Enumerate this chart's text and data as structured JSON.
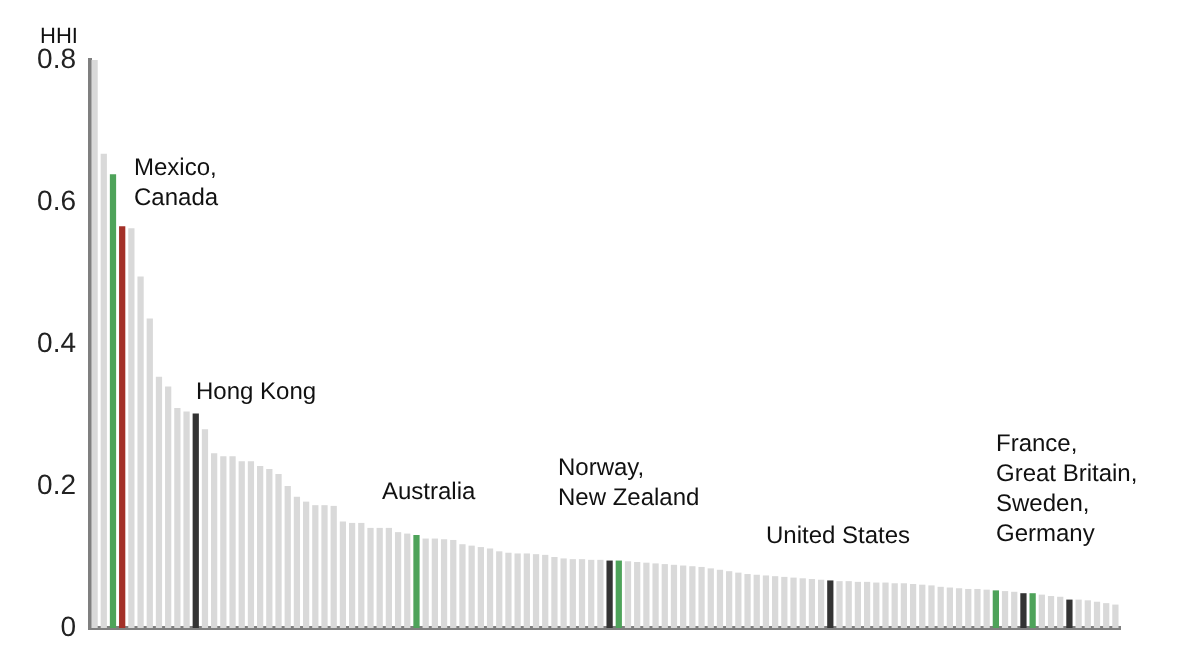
{
  "chart_data": {
    "type": "bar",
    "ylabel": "HHI",
    "categories": [
      null,
      null,
      null,
      null,
      null,
      null,
      null,
      null,
      null,
      null,
      null,
      null,
      null,
      null,
      null,
      null,
      null,
      null,
      null,
      null,
      null,
      null,
      null,
      null,
      null,
      null,
      null,
      null,
      null,
      null,
      null,
      null,
      null,
      null,
      null,
      null,
      null,
      null,
      null,
      null,
      null,
      null,
      null,
      null,
      null,
      null,
      null,
      null,
      null,
      null,
      null,
      null,
      null,
      null,
      null,
      null,
      null,
      null,
      null,
      null,
      null,
      null,
      null,
      null,
      null,
      null,
      null,
      null,
      null,
      null,
      null,
      null,
      null,
      null,
      null,
      null,
      null,
      null,
      null,
      null,
      null,
      null,
      null,
      null,
      null,
      null,
      null,
      null,
      null,
      null,
      null,
      null,
      null,
      null,
      null,
      null,
      null,
      null,
      null,
      null,
      null,
      null,
      null,
      null,
      null,
      null,
      null,
      null,
      null,
      null,
      null,
      null
    ],
    "values": [
      0.8,
      0.668,
      0.639,
      0.566,
      0.563,
      0.495,
      0.436,
      0.354,
      0.34,
      0.31,
      0.305,
      0.302,
      0.28,
      0.246,
      0.242,
      0.242,
      0.235,
      0.235,
      0.228,
      0.224,
      0.217,
      0.2,
      0.185,
      0.178,
      0.173,
      0.173,
      0.172,
      0.15,
      0.148,
      0.148,
      0.141,
      0.141,
      0.141,
      0.135,
      0.133,
      0.131,
      0.126,
      0.126,
      0.125,
      0.124,
      0.118,
      0.116,
      0.114,
      0.112,
      0.108,
      0.106,
      0.105,
      0.105,
      0.104,
      0.103,
      0.1,
      0.098,
      0.097,
      0.097,
      0.096,
      0.096,
      0.095,
      0.095,
      0.094,
      0.093,
      0.092,
      0.091,
      0.09,
      0.089,
      0.088,
      0.087,
      0.086,
      0.084,
      0.082,
      0.08,
      0.078,
      0.076,
      0.075,
      0.074,
      0.073,
      0.072,
      0.071,
      0.07,
      0.069,
      0.068,
      0.067,
      0.066,
      0.066,
      0.065,
      0.065,
      0.064,
      0.064,
      0.063,
      0.063,
      0.062,
      0.061,
      0.06,
      0.058,
      0.057,
      0.056,
      0.055,
      0.055,
      0.054,
      0.053,
      0.052,
      0.051,
      0.049,
      0.049,
      0.047,
      0.045,
      0.044,
      0.04,
      0.04,
      0.039,
      0.037,
      0.035,
      0.033
    ],
    "colors": [
      "#d9d9d9",
      "#d9d9d9",
      "#4ea35a",
      "#a33028",
      "#d9d9d9",
      "#d9d9d9",
      "#d9d9d9",
      "#d9d9d9",
      "#d9d9d9",
      "#d9d9d9",
      "#d9d9d9",
      "#333333",
      "#d9d9d9",
      "#d9d9d9",
      "#d9d9d9",
      "#d9d9d9",
      "#d9d9d9",
      "#d9d9d9",
      "#d9d9d9",
      "#d9d9d9",
      "#d9d9d9",
      "#d9d9d9",
      "#d9d9d9",
      "#d9d9d9",
      "#d9d9d9",
      "#d9d9d9",
      "#d9d9d9",
      "#d9d9d9",
      "#d9d9d9",
      "#d9d9d9",
      "#d9d9d9",
      "#d9d9d9",
      "#d9d9d9",
      "#d9d9d9",
      "#d9d9d9",
      "#4ea35a",
      "#d9d9d9",
      "#d9d9d9",
      "#d9d9d9",
      "#d9d9d9",
      "#d9d9d9",
      "#d9d9d9",
      "#d9d9d9",
      "#d9d9d9",
      "#d9d9d9",
      "#d9d9d9",
      "#d9d9d9",
      "#d9d9d9",
      "#d9d9d9",
      "#d9d9d9",
      "#d9d9d9",
      "#d9d9d9",
      "#d9d9d9",
      "#d9d9d9",
      "#d9d9d9",
      "#d9d9d9",
      "#333333",
      "#4ea35a",
      "#d9d9d9",
      "#d9d9d9",
      "#d9d9d9",
      "#d9d9d9",
      "#d9d9d9",
      "#d9d9d9",
      "#d9d9d9",
      "#d9d9d9",
      "#d9d9d9",
      "#d9d9d9",
      "#d9d9d9",
      "#d9d9d9",
      "#d9d9d9",
      "#d9d9d9",
      "#d9d9d9",
      "#d9d9d9",
      "#d9d9d9",
      "#d9d9d9",
      "#d9d9d9",
      "#d9d9d9",
      "#d9d9d9",
      "#d9d9d9",
      "#333333",
      "#d9d9d9",
      "#d9d9d9",
      "#d9d9d9",
      "#d9d9d9",
      "#d9d9d9",
      "#d9d9d9",
      "#d9d9d9",
      "#d9d9d9",
      "#d9d9d9",
      "#d9d9d9",
      "#d9d9d9",
      "#d9d9d9",
      "#d9d9d9",
      "#d9d9d9",
      "#d9d9d9",
      "#d9d9d9",
      "#d9d9d9",
      "#4ea35a",
      "#d9d9d9",
      "#d9d9d9",
      "#333333",
      "#4ea35a",
      "#d9d9d9",
      "#d9d9d9",
      "#d9d9d9",
      "#333333",
      "#d9d9d9",
      "#d9d9d9",
      "#d9d9d9",
      "#d9d9d9",
      "#d9d9d9"
    ],
    "ylim": [
      0,
      0.8
    ],
    "yticks": [
      0,
      0.2,
      0.4,
      0.6,
      0.8
    ],
    "grid": false,
    "legend": false,
    "annotations": [
      "Mexico,\nCanada",
      "Hong Kong",
      "Australia",
      "Norway,\nNew Zealand",
      "United States",
      "France,\nGreat Britain,\nSweden,\nGermany"
    ]
  }
}
